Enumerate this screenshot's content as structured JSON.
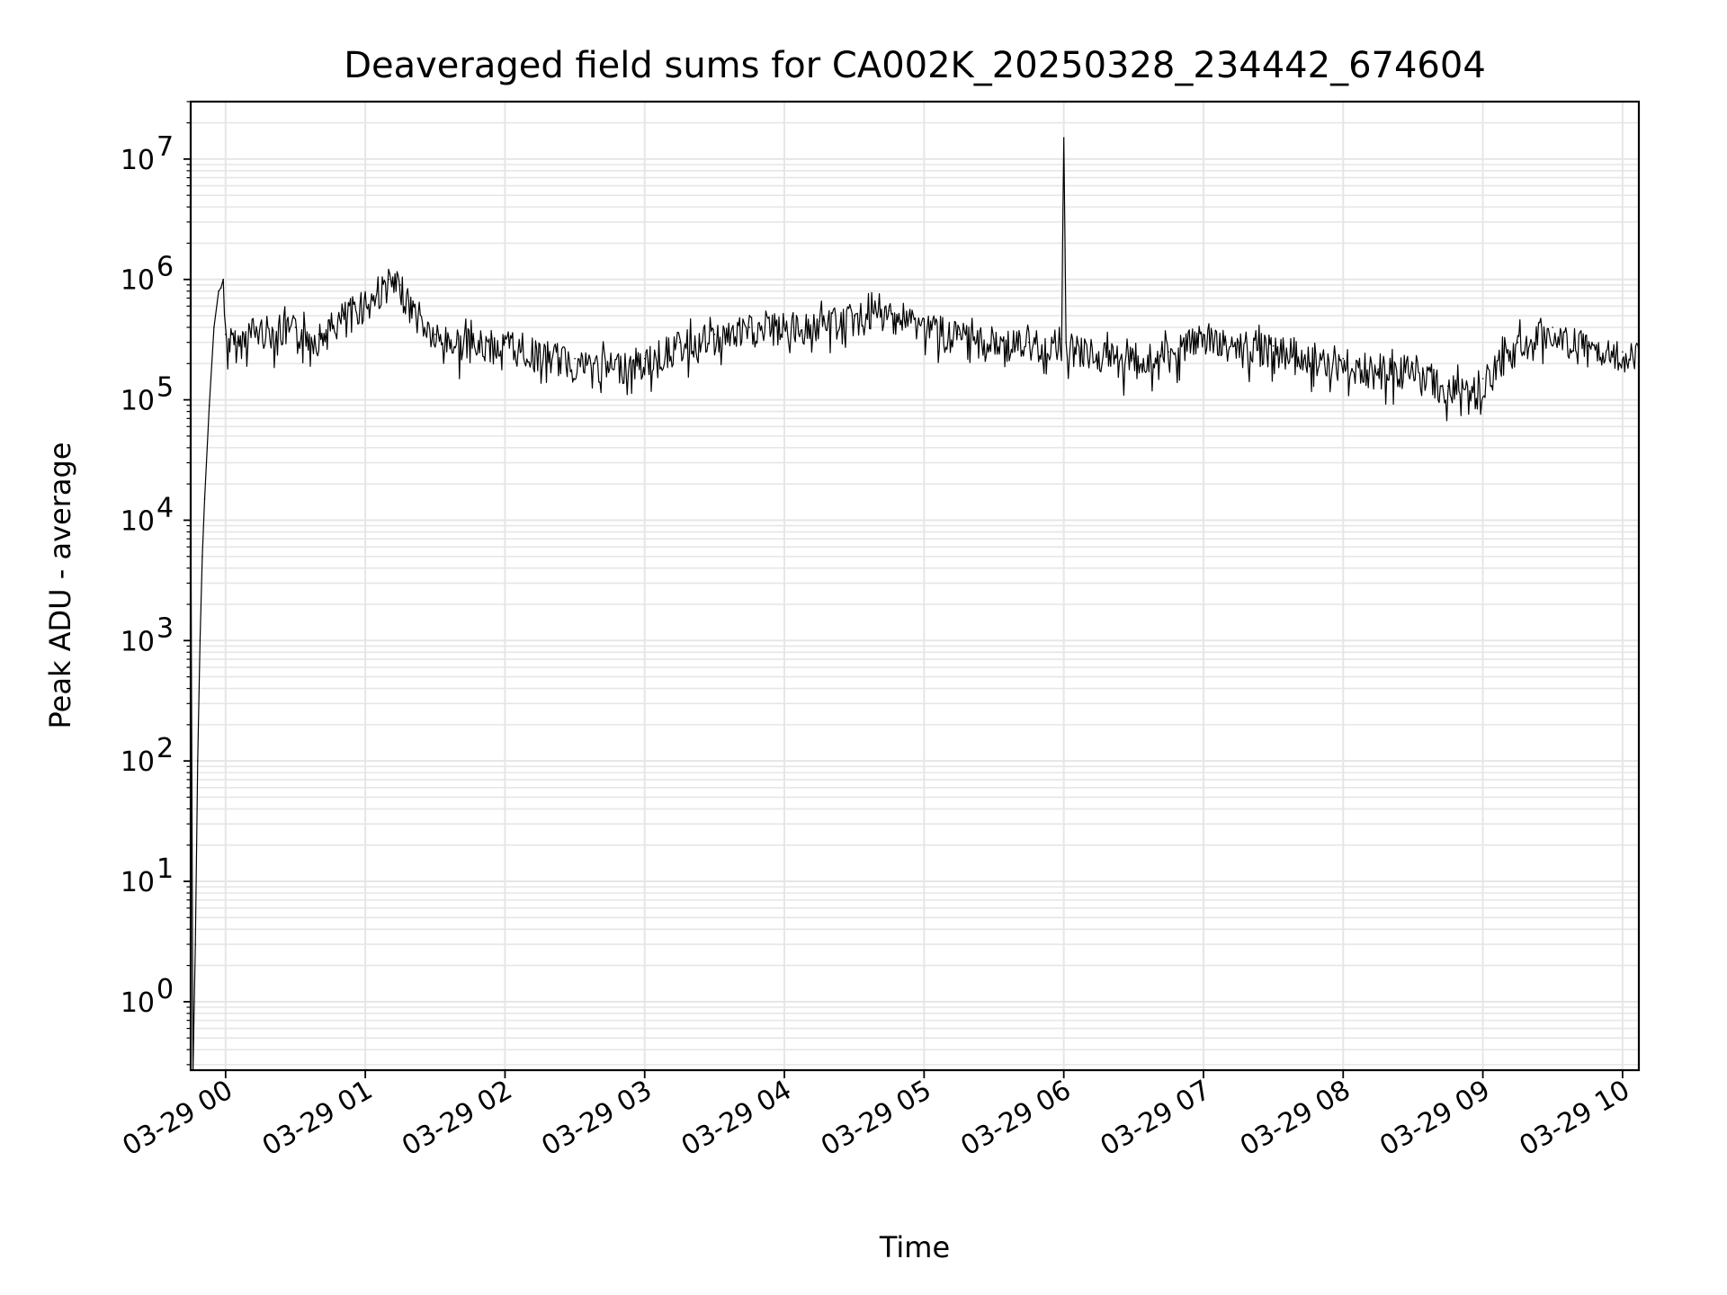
{
  "chart_data": {
    "type": "line",
    "title": "Deaveraged field sums for CA002K_20250328_234442_674604",
    "xlabel": "Time",
    "ylabel": "Peak ADU - average",
    "yscale": "log",
    "ylim": [
      0.27,
      30000000
    ],
    "xlim": [
      "2025-03-28 23:45",
      "2025-03-29 10:07"
    ],
    "grid": true,
    "line_color": "#000000",
    "grid_color": "#e6e6e6",
    "x_ticks": [
      {
        "value": "2025-03-29 00:00",
        "label": "03-29 00"
      },
      {
        "value": "2025-03-29 01:00",
        "label": "03-29 01"
      },
      {
        "value": "2025-03-29 02:00",
        "label": "03-29 02"
      },
      {
        "value": "2025-03-29 03:00",
        "label": "03-29 03"
      },
      {
        "value": "2025-03-29 04:00",
        "label": "03-29 04"
      },
      {
        "value": "2025-03-29 05:00",
        "label": "03-29 05"
      },
      {
        "value": "2025-03-29 06:00",
        "label": "03-29 06"
      },
      {
        "value": "2025-03-29 07:00",
        "label": "03-29 07"
      },
      {
        "value": "2025-03-29 08:00",
        "label": "03-29 08"
      },
      {
        "value": "2025-03-29 09:00",
        "label": "03-29 09"
      },
      {
        "value": "2025-03-29 10:00",
        "label": "03-29 10"
      }
    ],
    "y_ticks": [
      {
        "value": 1,
        "base": "10",
        "exp": "0"
      },
      {
        "value": 10,
        "base": "10",
        "exp": "1"
      },
      {
        "value": 100,
        "base": "10",
        "exp": "2"
      },
      {
        "value": 1000,
        "base": "10",
        "exp": "3"
      },
      {
        "value": 10000,
        "base": "10",
        "exp": "4"
      },
      {
        "value": 100000,
        "base": "10",
        "exp": "5"
      },
      {
        "value": 1000000,
        "base": "10",
        "exp": "6"
      },
      {
        "value": 10000000,
        "base": "10",
        "exp": "7"
      }
    ],
    "series": [
      {
        "x": [
          "2025-03-28 23:45",
          "2025-03-28 23:46",
          "2025-03-28 23:47",
          "2025-03-28 23:48",
          "2025-03-28 23:49",
          "2025-03-28 23:50",
          "2025-03-28 23:51",
          "2025-03-28 23:53",
          "2025-03-28 23:55",
          "2025-03-28 23:57",
          "2025-03-28 23:58",
          "2025-03-28 23:59",
          "2025-03-29 00:00",
          "2025-03-29 00:05",
          "2025-03-29 00:10",
          "2025-03-29 00:20",
          "2025-03-29 00:30",
          "2025-03-29 00:40",
          "2025-03-29 00:50",
          "2025-03-29 01:00",
          "2025-03-29 01:05",
          "2025-03-29 01:10",
          "2025-03-29 01:15",
          "2025-03-29 01:20",
          "2025-03-29 01:30",
          "2025-03-29 01:40",
          "2025-03-29 01:50",
          "2025-03-29 02:00",
          "2025-03-29 02:15",
          "2025-03-29 02:30",
          "2025-03-29 02:45",
          "2025-03-29 03:00",
          "2025-03-29 03:15",
          "2025-03-29 03:30",
          "2025-03-29 03:45",
          "2025-03-29 04:00",
          "2025-03-29 04:15",
          "2025-03-29 04:30",
          "2025-03-29 04:45",
          "2025-03-29 05:00",
          "2025-03-29 05:15",
          "2025-03-29 05:30",
          "2025-03-29 05:45",
          "2025-03-29 05:59",
          "2025-03-29 06:00",
          "2025-03-29 06:01",
          "2025-03-29 06:15",
          "2025-03-29 06:30",
          "2025-03-29 06:45",
          "2025-03-29 07:00",
          "2025-03-29 07:15",
          "2025-03-29 07:30",
          "2025-03-29 07:45",
          "2025-03-29 08:00",
          "2025-03-29 08:15",
          "2025-03-29 08:30",
          "2025-03-29 08:45",
          "2025-03-29 09:00",
          "2025-03-29 09:15",
          "2025-03-29 09:30",
          "2025-03-29 09:45",
          "2025-03-29 10:00",
          "2025-03-29 10:07"
        ],
        "values": [
          20000,
          0.27,
          3,
          100,
          1000,
          5000,
          15000,
          90000,
          400000,
          800000,
          850000,
          1000000,
          350000,
          300000,
          400000,
          400000,
          400000,
          350000,
          500000,
          700000,
          800000,
          1000000,
          900000,
          600000,
          350000,
          320000,
          300000,
          300000,
          250000,
          220000,
          200000,
          220000,
          300000,
          350000,
          400000,
          420000,
          450000,
          500000,
          550000,
          450000,
          350000,
          320000,
          300000,
          320000,
          15000000,
          300000,
          250000,
          220000,
          250000,
          350000,
          300000,
          280000,
          250000,
          220000,
          180000,
          200000,
          130000,
          150000,
          300000,
          400000,
          280000,
          250000,
          280000
        ]
      }
    ]
  }
}
